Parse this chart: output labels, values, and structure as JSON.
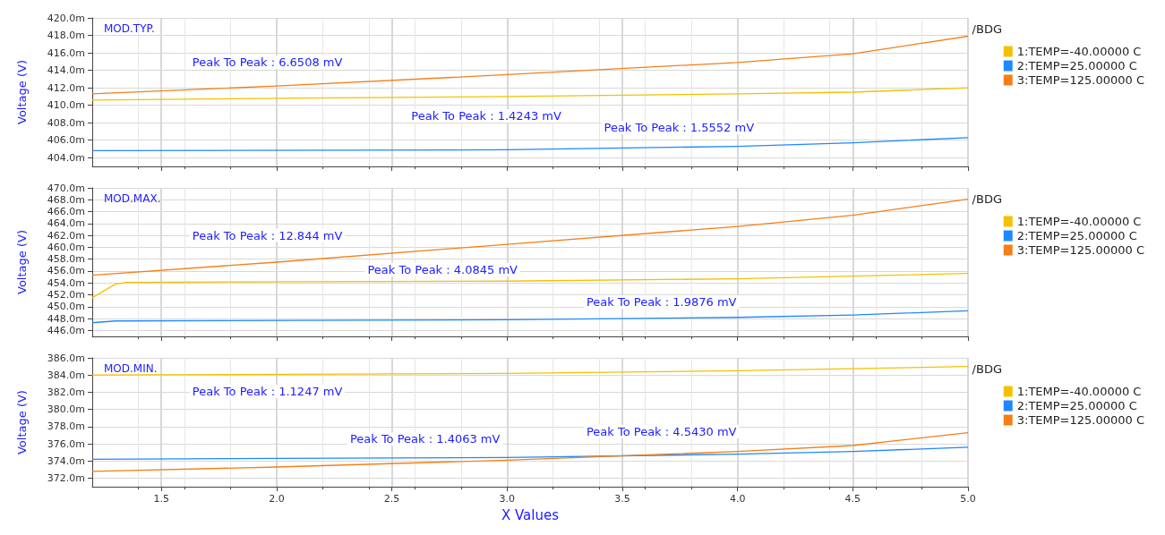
{
  "chart_data": [
    {
      "type": "line",
      "title": "MOD.TYP.",
      "ylabel": "Voltage (V)",
      "legend_title": "/BDG",
      "legend": "right",
      "grid": true,
      "tick_labels": "y",
      "marker": "none",
      "line_style": "solid",
      "xlim": [
        1.2,
        5.0
      ],
      "xticks": [
        1.5,
        2,
        2.5,
        3,
        3.5,
        4,
        4.5,
        5
      ],
      "ylim": [
        403,
        420
      ],
      "yticks": [
        {
          "value": 404,
          "label": "404.0m"
        },
        {
          "value": 406,
          "label": "406.0m"
        },
        {
          "value": 408,
          "label": "408.0m"
        },
        {
          "value": 410,
          "label": "410.0m"
        },
        {
          "value": 412,
          "label": "412.0m"
        },
        {
          "value": 414,
          "label": "414.0m"
        },
        {
          "value": 416,
          "label": "416.0m"
        },
        {
          "value": 418,
          "label": "418.0m"
        },
        {
          "value": 420,
          "label": "420.0m"
        }
      ],
      "series": [
        {
          "name": "1:TEMP=-40.00000 C",
          "color": "#f5c000",
          "x": [
            1.2,
            2.0,
            3.0,
            4.0,
            4.5,
            5.0
          ],
          "values": [
            410.6,
            410.8,
            411.0,
            411.3,
            411.5,
            412.0
          ]
        },
        {
          "name": "2:TEMP=25.00000 C",
          "color": "#1e88ff",
          "x": [
            1.2,
            3.0,
            4.0,
            4.5,
            5.0
          ],
          "values": [
            404.8,
            404.9,
            405.3,
            405.7,
            406.3
          ]
        },
        {
          "name": "3:TEMP=125.00000 C",
          "color": "#f57f17",
          "x": [
            1.2,
            2.0,
            3.0,
            4.0,
            4.5,
            5.0
          ],
          "values": [
            411.3,
            412.2,
            413.5,
            414.9,
            415.9,
            417.9
          ]
        }
      ],
      "annotations": [
        "Peak To Peak : 6.6508 mV",
        "Peak To Peak : 1.4243 mV",
        "Peak To Peak : 1.5552 mV"
      ]
    },
    {
      "type": "line",
      "title": "MOD.MAX.",
      "ylabel": "Voltage (V)",
      "legend_title": "/BDG",
      "legend": "right",
      "grid": true,
      "tick_labels": "y",
      "marker": "none",
      "line_style": "solid",
      "xlim": [
        1.2,
        5.0
      ],
      "xticks": [
        1.5,
        2,
        2.5,
        3,
        3.5,
        4,
        4.5,
        5
      ],
      "ylim": [
        445,
        470
      ],
      "yticks": [
        {
          "value": 446,
          "label": "446.0m"
        },
        {
          "value": 448,
          "label": "448.0m"
        },
        {
          "value": 450,
          "label": "450.0m"
        },
        {
          "value": 452,
          "label": "452.0m"
        },
        {
          "value": 454,
          "label": "454.0m"
        },
        {
          "value": 456,
          "label": "456.0m"
        },
        {
          "value": 458,
          "label": "458.0m"
        },
        {
          "value": 460,
          "label": "460.0m"
        },
        {
          "value": 462,
          "label": "462.0m"
        },
        {
          "value": 464,
          "label": "464.0m"
        },
        {
          "value": 466,
          "label": "466.0m"
        },
        {
          "value": 468,
          "label": "468.0m"
        },
        {
          "value": 470,
          "label": "470.0m"
        }
      ],
      "series": [
        {
          "name": "1:TEMP=-40.00000 C",
          "color": "#f5c000",
          "x": [
            1.2,
            1.3,
            1.35,
            3.0,
            4.0,
            5.0
          ],
          "values": [
            451.5,
            453.8,
            454.1,
            454.3,
            454.7,
            455.6
          ]
        },
        {
          "name": "2:TEMP=25.00000 C",
          "color": "#1e88ff",
          "x": [
            1.2,
            1.3,
            3.0,
            4.0,
            4.5,
            5.0
          ],
          "values": [
            447.3,
            447.6,
            447.8,
            448.2,
            448.6,
            449.3
          ]
        },
        {
          "name": "3:TEMP=125.00000 C",
          "color": "#f57f17",
          "x": [
            1.2,
            2.0,
            3.0,
            4.0,
            4.5,
            5.0
          ],
          "values": [
            455.3,
            457.5,
            460.5,
            463.5,
            465.4,
            468.1
          ]
        }
      ],
      "annotations": [
        "Peak To Peak : 12.844 mV",
        "Peak To Peak : 4.0845 mV",
        "Peak To Peak : 1.9876 mV"
      ]
    },
    {
      "type": "line",
      "title": "MOD.MIN.",
      "xlabel": "X Values",
      "ylabel": "Voltage (V)",
      "legend_title": "/BDG",
      "legend": "right",
      "grid": true,
      "marker": "none",
      "line_style": "solid",
      "xlim": [
        1.2,
        5.0
      ],
      "xticks": [
        1.5,
        {
          "value": 2,
          "label": "2.0"
        },
        2.5,
        {
          "value": 3,
          "label": "3.0"
        },
        3.5,
        {
          "value": 4,
          "label": "4.0"
        },
        4.5,
        {
          "value": 5,
          "label": "5.0"
        }
      ],
      "ylim": [
        371,
        386
      ],
      "yticks": [
        {
          "value": 372,
          "label": "372.0m"
        },
        {
          "value": 374,
          "label": "374.0m"
        },
        {
          "value": 376,
          "label": "376.0m"
        },
        {
          "value": 378,
          "label": "378.0m"
        },
        {
          "value": 380,
          "label": "380.0m"
        },
        {
          "value": 382,
          "label": "382.0m"
        },
        {
          "value": 384,
          "label": "384.0m"
        },
        {
          "value": 386,
          "label": "386.0m"
        }
      ],
      "series": [
        {
          "name": "1:TEMP=-40.00000 C",
          "color": "#f5c000",
          "x": [
            1.2,
            3.0,
            4.0,
            5.0
          ],
          "values": [
            384.0,
            384.2,
            384.5,
            385.0
          ]
        },
        {
          "name": "2:TEMP=25.00000 C",
          "color": "#1e88ff",
          "x": [
            1.2,
            2.0,
            3.0,
            4.0,
            4.5,
            5.0
          ],
          "values": [
            374.2,
            374.3,
            374.4,
            374.8,
            375.1,
            375.6
          ]
        },
        {
          "name": "3:TEMP=125.00000 C",
          "color": "#f57f17",
          "x": [
            1.2,
            2.0,
            3.0,
            4.0,
            4.5,
            5.0
          ],
          "values": [
            372.8,
            373.3,
            374.1,
            375.1,
            375.8,
            377.3
          ]
        }
      ],
      "annotations": [
        "Peak To Peak : 1.1247 mV",
        "Peak To Peak : 1.4063 mV",
        "Peak To Peak : 4.5430 mV"
      ]
    }
  ]
}
